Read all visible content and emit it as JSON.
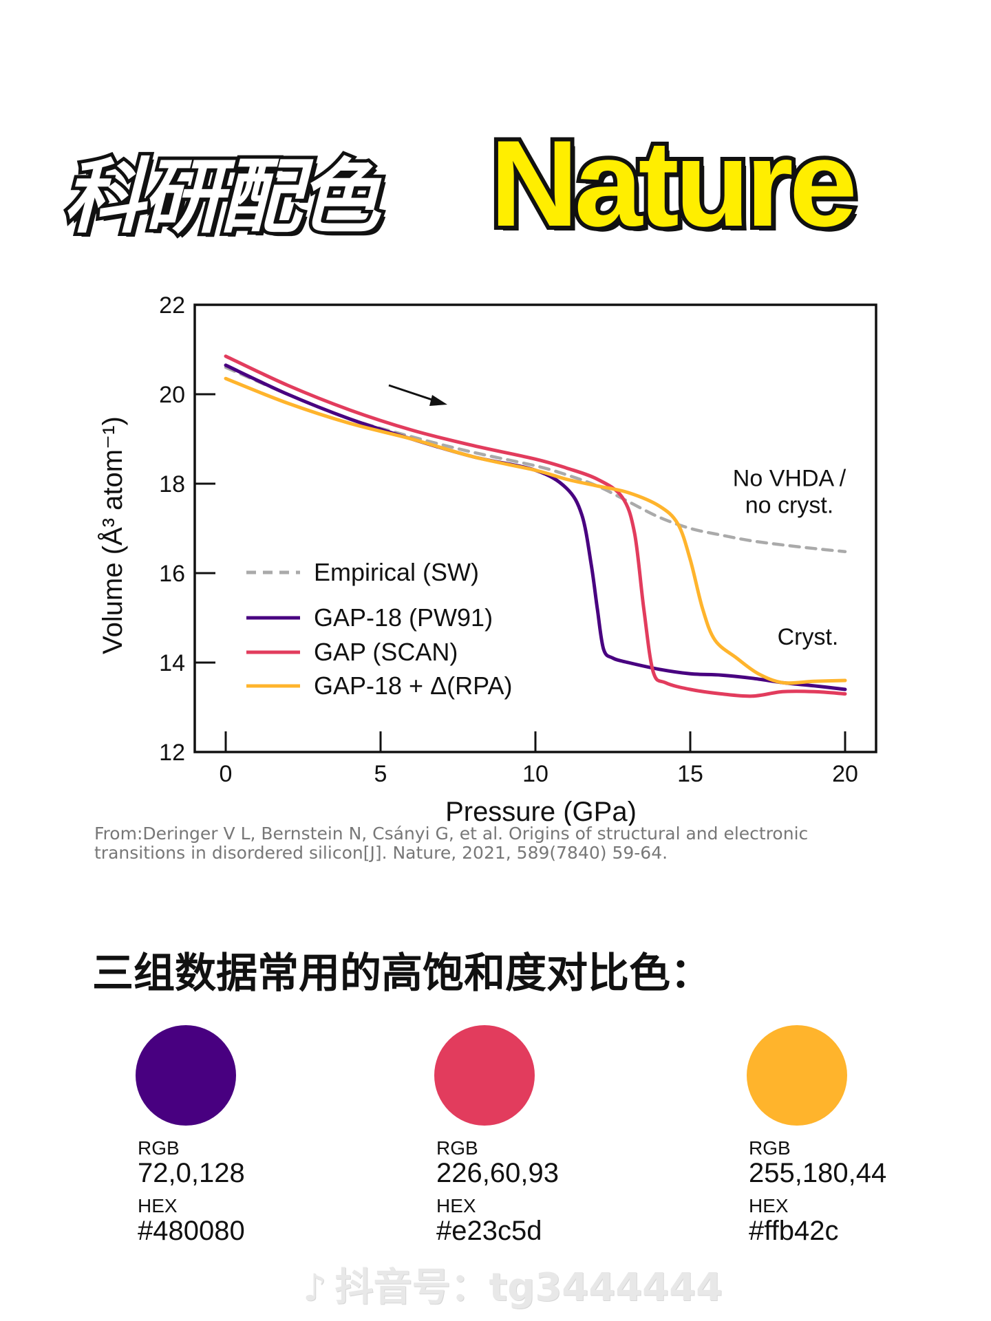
{
  "header": {
    "title_cn": "科研配色",
    "title_en": "Nature"
  },
  "chart_data": {
    "type": "line",
    "xlabel": "Pressure (GPa)",
    "ylabel": "Volume (Å³ atom⁻¹)",
    "xlim": [
      -1,
      21
    ],
    "ylim": [
      12,
      22
    ],
    "xticks": [
      0,
      5,
      10,
      15,
      20
    ],
    "yticks": [
      12,
      14,
      16,
      18,
      20,
      22
    ],
    "grid": false,
    "legend_position": "left-center",
    "annotations": [
      {
        "text": "No VHDA /",
        "x": 18.2,
        "y": 17.95
      },
      {
        "text": "no cryst.",
        "x": 18.2,
        "y": 17.35
      },
      {
        "text": "Cryst.",
        "x": 18.8,
        "y": 14.4
      }
    ],
    "series": [
      {
        "name": "Empirical (SW)",
        "color": "#aaaaaa",
        "dashed": true,
        "x": [
          0,
          2,
          4,
          6,
          8,
          10,
          11,
          12,
          13,
          14,
          15,
          16,
          17,
          18,
          19,
          20
        ],
        "y": [
          20.6,
          20.0,
          19.45,
          19.05,
          18.7,
          18.4,
          18.2,
          17.95,
          17.6,
          17.25,
          17.0,
          16.85,
          16.72,
          16.63,
          16.55,
          16.48
        ]
      },
      {
        "name": "GAP-18 (PW91)",
        "color": "#480080",
        "dashed": false,
        "x": [
          0,
          2,
          4,
          6,
          8,
          10,
          11,
          11.5,
          11.8,
          12.0,
          12.2,
          12.5,
          13,
          14,
          15,
          16,
          17,
          18,
          19,
          20
        ],
        "y": [
          20.65,
          20.0,
          19.45,
          19.0,
          18.6,
          18.3,
          17.9,
          17.3,
          16.2,
          15.2,
          14.3,
          14.1,
          14.0,
          13.85,
          13.75,
          13.72,
          13.65,
          13.55,
          13.48,
          13.4
        ]
      },
      {
        "name": "GAP (SCAN)",
        "color": "#e23c5d",
        "dashed": false,
        "x": [
          0,
          2,
          4,
          6,
          8,
          10,
          11,
          12,
          12.8,
          13.2,
          13.5,
          13.8,
          14.2,
          15,
          16,
          17,
          18,
          19,
          20
        ],
        "y": [
          20.85,
          20.2,
          19.65,
          19.2,
          18.85,
          18.55,
          18.35,
          18.1,
          17.7,
          16.9,
          15.2,
          13.8,
          13.55,
          13.4,
          13.3,
          13.25,
          13.35,
          13.35,
          13.3
        ]
      },
      {
        "name": "GAP-18 + Δ(RPA)",
        "color": "#ffb42c",
        "dashed": false,
        "x": [
          0,
          2,
          4,
          6,
          8,
          10,
          11,
          12,
          13,
          14,
          14.6,
          15,
          15.4,
          15.8,
          16.5,
          17.2,
          18,
          19,
          20
        ],
        "y": [
          20.35,
          19.8,
          19.35,
          19.0,
          18.6,
          18.3,
          18.1,
          17.95,
          17.8,
          17.5,
          17.1,
          16.3,
          15.2,
          14.5,
          14.1,
          13.75,
          13.55,
          13.58,
          13.6
        ]
      }
    ]
  },
  "citation": {
    "line1": "From:Deringer V L, Bernstein N, Csányi G, et al. Origins of structural and electronic",
    "line2": "transitions in disordered silicon[J]. Nature, 2021, 589(7840) 59-64."
  },
  "palette": {
    "heading": "三组数据常用的高饱和度对比色：",
    "swatches": [
      {
        "rgb_label": "RGB",
        "rgb": "72,0,128",
        "hex_label": "HEX",
        "hex": "#480080",
        "color": "#480080"
      },
      {
        "rgb_label": "RGB",
        "rgb": "226,60,93",
        "hex_label": "HEX",
        "hex": "#e23c5d",
        "color": "#e23c5d"
      },
      {
        "rgb_label": "RGB",
        "rgb": "255,180,44",
        "hex_label": "HEX",
        "hex": "#ffb42c",
        "color": "#ffb42c"
      }
    ]
  },
  "watermark": {
    "icon": "douyin-logo-icon",
    "text": "抖音号：tg3444444"
  }
}
